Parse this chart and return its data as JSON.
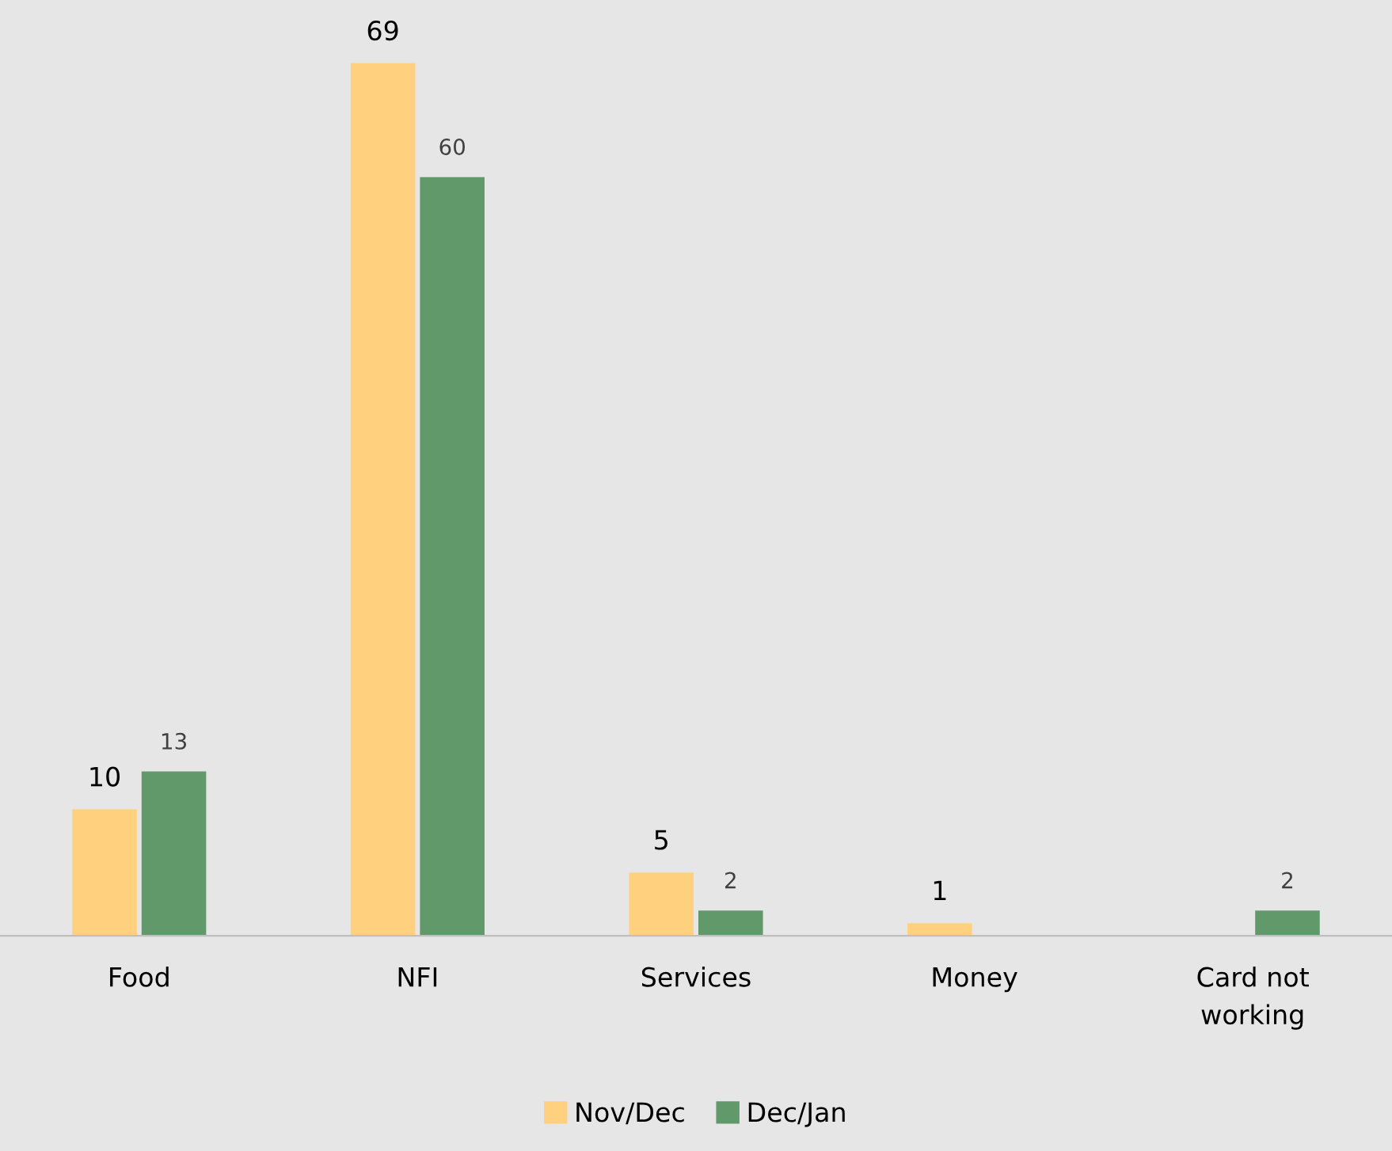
{
  "chart_data": {
    "type": "bar",
    "categories": [
      "Food",
      "NFI",
      "Services",
      "Money",
      "Card not working"
    ],
    "series": [
      {
        "name": "Nov/Dec",
        "color": "#ffd17f",
        "values": [
          10,
          69,
          5,
          1,
          null
        ]
      },
      {
        "name": "Dec/Jan",
        "color": "#62996b",
        "values": [
          13,
          60,
          2,
          null,
          2
        ]
      }
    ],
    "ylim": [
      0,
      74
    ],
    "data_labels": true,
    "tick_labels": "x",
    "grid": false,
    "legend": "bottom"
  }
}
